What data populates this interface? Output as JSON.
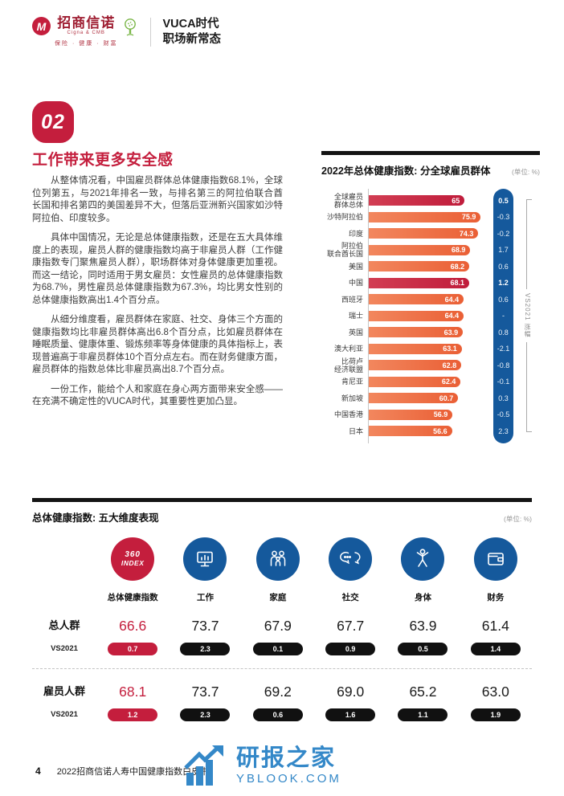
{
  "header": {
    "brand_cn": "招商信诺",
    "brand_sub": "Cigna & CMB",
    "brand_tagline": "保险 · 健康 · 财富",
    "edition_line1": "VUCA时代",
    "edition_line2": "职场新常态"
  },
  "section": {
    "number": "02",
    "title": "工作带来更多安全感",
    "paragraphs": [
      "从整体情况看，中国雇员群体总体健康指数68.1%，全球位列第五，与2021年排名一致，与排名第三的阿拉伯联合酋长国和排名第四的美国差异不大，但落后亚洲新兴国家如沙特阿拉伯、印度较多。",
      "具体中国情况，无论是总体健康指数，还是在五大具体维度上的表现，雇员人群的健康指数均高于非雇员人群（工作健康指数专门聚焦雇员人群），职场群体对身体健康更加重视。而这一结论，同时适用于男女雇员：女性雇员的总体健康指数为68.7%，男性雇员总体健康指数为67.3%，均比男女性别的总体健康指数高出1.4个百分点。",
      "从细分维度看，雇员群体在家庭、社交、身体三个方面的健康指数均比非雇员群体高出6.8个百分点，比如雇员群体在睡眠质量、健康体重、锻炼频率等身体健康的具体指标上，表现普遍高于非雇员群体10个百分点左右。而在财务健康方面，雇员群体的指数总体比非雇员高出8.7个百分点。",
      "一份工作，能给个人和家庭在身心两方面带来安全感——在充满不确定性的VUCA时代，其重要性更加凸显。"
    ]
  },
  "chart_data": {
    "type": "bar",
    "orientation": "horizontal",
    "title": "2022年总体健康指数: 分全球雇员群体",
    "unit_label": "(单位: %)",
    "vs_axis_label": "VS2021 涨幅",
    "xlim": [
      0,
      80
    ],
    "rows": [
      {
        "label": "全球雇员\n群体总体",
        "value": 65,
        "vs": "0.5",
        "highlight": true
      },
      {
        "label": "沙特阿拉伯",
        "value": 75.9,
        "vs": "-0.3",
        "highlight": false
      },
      {
        "label": "印度",
        "value": 74.3,
        "vs": "-0.2",
        "highlight": false
      },
      {
        "label": "阿拉伯\n联合酋长国",
        "value": 68.9,
        "vs": "1.7",
        "highlight": false
      },
      {
        "label": "美国",
        "value": 68.2,
        "vs": "0.6",
        "highlight": false
      },
      {
        "label": "中国",
        "value": 68.1,
        "vs": "1.2",
        "highlight": true
      },
      {
        "label": "西班牙",
        "value": 64.4,
        "vs": "0.6",
        "highlight": false
      },
      {
        "label": "瑞士",
        "value": 64.4,
        "vs": "-",
        "highlight": false
      },
      {
        "label": "英国",
        "value": 63.9,
        "vs": "0.8",
        "highlight": false
      },
      {
        "label": "澳大利亚",
        "value": 63.1,
        "vs": "-2.1",
        "highlight": false
      },
      {
        "label": "比荷卢\n经济联盟",
        "value": 62.8,
        "vs": "-0.8",
        "highlight": false
      },
      {
        "label": "肯尼亚",
        "value": 62.4,
        "vs": "-0.1",
        "highlight": false
      },
      {
        "label": "新加坡",
        "value": 60.7,
        "vs": "0.3",
        "highlight": false
      },
      {
        "label": "中国香港",
        "value": 56.9,
        "vs": "-0.5",
        "highlight": false
      },
      {
        "label": "日本",
        "value": 56.6,
        "vs": "2.3",
        "highlight": false
      }
    ]
  },
  "dimensions_table": {
    "title": "总体健康指数: 五大维度表现",
    "unit_label": "(单位: %)",
    "vs_label": "VS2021",
    "index_badge": {
      "line1": "360",
      "line2": "INDEX"
    },
    "columns": [
      {
        "label": "总体健康指数"
      },
      {
        "label": "工作"
      },
      {
        "label": "家庭"
      },
      {
        "label": "社交"
      },
      {
        "label": "身体"
      },
      {
        "label": "财务"
      }
    ],
    "rows": [
      {
        "label": "总人群",
        "values": [
          "66.6",
          "73.7",
          "67.9",
          "67.7",
          "63.9",
          "61.4"
        ],
        "vs": [
          "0.7",
          "2.3",
          "0.1",
          "0.9",
          "0.5",
          "1.4"
        ]
      },
      {
        "label": "雇员人群",
        "values": [
          "68.1",
          "73.7",
          "69.2",
          "69.0",
          "65.2",
          "63.0"
        ],
        "vs": [
          "1.2",
          "2.3",
          "0.6",
          "1.6",
          "1.1",
          "1.9"
        ]
      }
    ]
  },
  "footer": {
    "page_number": "4",
    "doc_title": "2022招商信诺人寿中国健康指数白皮书",
    "watermark_title": "研报之家",
    "watermark_url": "YBLOOK.COM"
  },
  "colors": {
    "crimson": "#c41e3d",
    "orange": "#ec6a41",
    "blue": "#15599c",
    "pill_black": "#111111",
    "watermark_blue": "#3488c8"
  }
}
